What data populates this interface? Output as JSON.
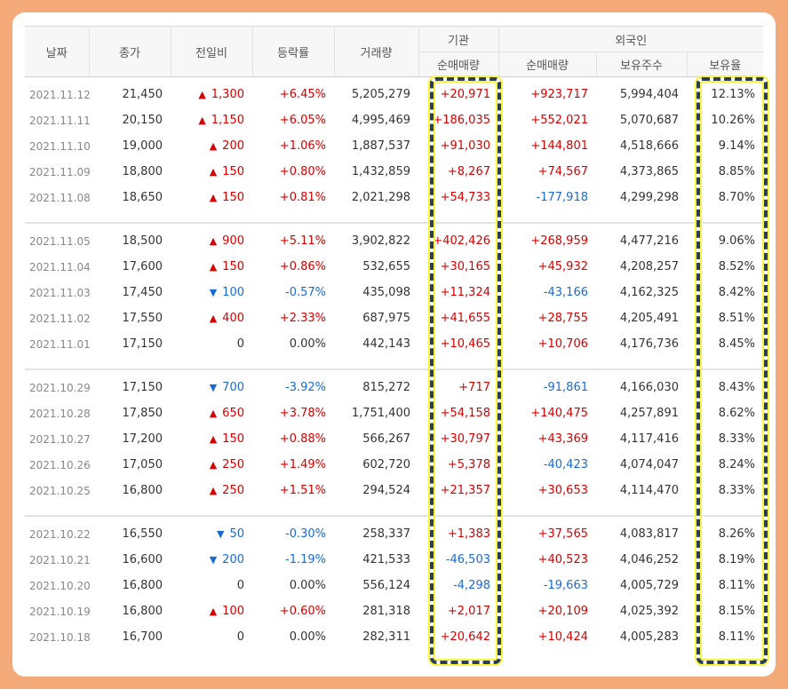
{
  "headers": {
    "date": "날짜",
    "close": "종가",
    "change": "전일비",
    "rate": "등락률",
    "volume": "거래량",
    "institution": "기관",
    "inst_net": "순매매량",
    "foreign": "외국인",
    "foreign_net": "순매매량",
    "foreign_shares": "보유주수",
    "foreign_ratio": "보유율"
  },
  "groups": [
    {
      "rows": [
        {
          "date": "2021.11.12",
          "close": "21,450",
          "dir": "up",
          "change": "1,300",
          "rate": "+6.45%",
          "volume": "5,205,279",
          "inst_net": "+20,971",
          "foreign_net": "+923,717",
          "shares": "5,994,404",
          "ratio": "12.13%"
        },
        {
          "date": "2021.11.11",
          "close": "20,150",
          "dir": "up",
          "change": "1,150",
          "rate": "+6.05%",
          "volume": "4,995,469",
          "inst_net": "+186,035",
          "foreign_net": "+552,021",
          "shares": "5,070,687",
          "ratio": "10.26%"
        },
        {
          "date": "2021.11.10",
          "close": "19,000",
          "dir": "up",
          "change": "200",
          "rate": "+1.06%",
          "volume": "1,887,537",
          "inst_net": "+91,030",
          "foreign_net": "+144,801",
          "shares": "4,518,666",
          "ratio": "9.14%"
        },
        {
          "date": "2021.11.09",
          "close": "18,800",
          "dir": "up",
          "change": "150",
          "rate": "+0.80%",
          "volume": "1,432,859",
          "inst_net": "+8,267",
          "foreign_net": "+74,567",
          "shares": "4,373,865",
          "ratio": "8.85%"
        },
        {
          "date": "2021.11.08",
          "close": "18,650",
          "dir": "up",
          "change": "150",
          "rate": "+0.81%",
          "volume": "2,021,298",
          "inst_net": "+54,733",
          "foreign_net": "-177,918",
          "shares": "4,299,298",
          "ratio": "8.70%"
        }
      ]
    },
    {
      "rows": [
        {
          "date": "2021.11.05",
          "close": "18,500",
          "dir": "up",
          "change": "900",
          "rate": "+5.11%",
          "volume": "3,902,822",
          "inst_net": "+402,426",
          "foreign_net": "+268,959",
          "shares": "4,477,216",
          "ratio": "9.06%"
        },
        {
          "date": "2021.11.04",
          "close": "17,600",
          "dir": "up",
          "change": "150",
          "rate": "+0.86%",
          "volume": "532,655",
          "inst_net": "+30,165",
          "foreign_net": "+45,932",
          "shares": "4,208,257",
          "ratio": "8.52%"
        },
        {
          "date": "2021.11.03",
          "close": "17,450",
          "dir": "down",
          "change": "100",
          "rate": "-0.57%",
          "volume": "435,098",
          "inst_net": "+11,324",
          "foreign_net": "-43,166",
          "shares": "4,162,325",
          "ratio": "8.42%"
        },
        {
          "date": "2021.11.02",
          "close": "17,550",
          "dir": "up",
          "change": "400",
          "rate": "+2.33%",
          "volume": "687,975",
          "inst_net": "+41,655",
          "foreign_net": "+28,755",
          "shares": "4,205,491",
          "ratio": "8.51%"
        },
        {
          "date": "2021.11.01",
          "close": "17,150",
          "dir": "none",
          "change": "0",
          "rate": "0.00%",
          "volume": "442,143",
          "inst_net": "+10,465",
          "foreign_net": "+10,706",
          "shares": "4,176,736",
          "ratio": "8.45%"
        }
      ]
    },
    {
      "rows": [
        {
          "date": "2021.10.29",
          "close": "17,150",
          "dir": "down",
          "change": "700",
          "rate": "-3.92%",
          "volume": "815,272",
          "inst_net": "+717",
          "foreign_net": "-91,861",
          "shares": "4,166,030",
          "ratio": "8.43%"
        },
        {
          "date": "2021.10.28",
          "close": "17,850",
          "dir": "up",
          "change": "650",
          "rate": "+3.78%",
          "volume": "1,751,400",
          "inst_net": "+54,158",
          "foreign_net": "+140,475",
          "shares": "4,257,891",
          "ratio": "8.62%"
        },
        {
          "date": "2021.10.27",
          "close": "17,200",
          "dir": "up",
          "change": "150",
          "rate": "+0.88%",
          "volume": "566,267",
          "inst_net": "+30,797",
          "foreign_net": "+43,369",
          "shares": "4,117,416",
          "ratio": "8.33%"
        },
        {
          "date": "2021.10.26",
          "close": "17,050",
          "dir": "up",
          "change": "250",
          "rate": "+1.49%",
          "volume": "602,720",
          "inst_net": "+5,378",
          "foreign_net": "-40,423",
          "shares": "4,074,047",
          "ratio": "8.24%"
        },
        {
          "date": "2021.10.25",
          "close": "16,800",
          "dir": "up",
          "change": "250",
          "rate": "+1.51%",
          "volume": "294,524",
          "inst_net": "+21,357",
          "foreign_net": "+30,653",
          "shares": "4,114,470",
          "ratio": "8.33%"
        }
      ]
    },
    {
      "rows": [
        {
          "date": "2021.10.22",
          "close": "16,550",
          "dir": "down",
          "change": "50",
          "rate": "-0.30%",
          "volume": "258,337",
          "inst_net": "+1,383",
          "foreign_net": "+37,565",
          "shares": "4,083,817",
          "ratio": "8.26%"
        },
        {
          "date": "2021.10.21",
          "close": "16,600",
          "dir": "down",
          "change": "200",
          "rate": "-1.19%",
          "volume": "421,533",
          "inst_net": "-46,503",
          "foreign_net": "+40,523",
          "shares": "4,046,252",
          "ratio": "8.19%"
        },
        {
          "date": "2021.10.20",
          "close": "16,800",
          "dir": "none",
          "change": "0",
          "rate": "0.00%",
          "volume": "556,124",
          "inst_net": "-4,298",
          "foreign_net": "-19,663",
          "shares": "4,005,729",
          "ratio": "8.11%"
        },
        {
          "date": "2021.10.19",
          "close": "16,800",
          "dir": "up",
          "change": "100",
          "rate": "+0.60%",
          "volume": "281,318",
          "inst_net": "+2,017",
          "foreign_net": "+20,109",
          "shares": "4,025,392",
          "ratio": "8.15%"
        },
        {
          "date": "2021.10.18",
          "close": "16,700",
          "dir": "none",
          "change": "0",
          "rate": "0.00%",
          "volume": "282,311",
          "inst_net": "+20,642",
          "foreign_net": "+10,424",
          "shares": "4,005,283",
          "ratio": "8.11%"
        }
      ]
    }
  ],
  "colors": {
    "up": "#d60000",
    "down": "#1a6ad4",
    "frame": "#f3a978",
    "highlight_dash": "#2c3e55",
    "highlight_glow": "#f8f53b"
  }
}
